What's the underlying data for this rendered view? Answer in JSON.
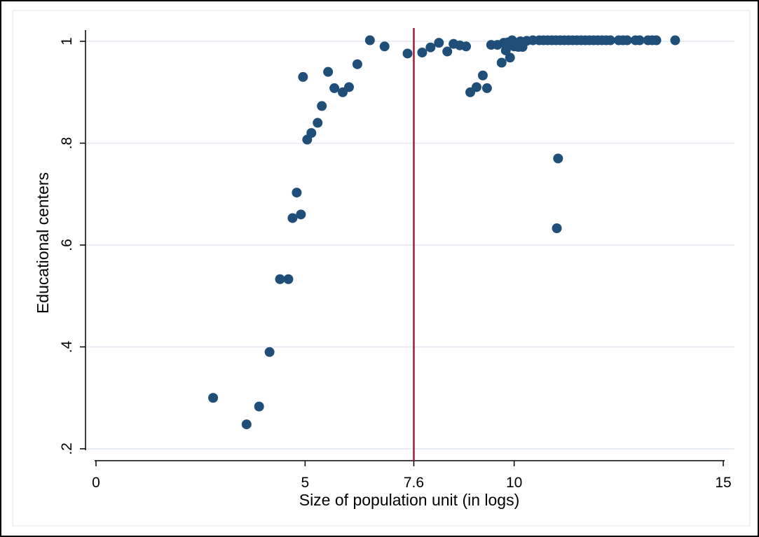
{
  "chart_data": {
    "type": "scatter",
    "xlabel": "Size of population unit (in logs)",
    "ylabel": "Educational centers",
    "xlim": [
      0,
      15
    ],
    "ylim": [
      0.2,
      1.0
    ],
    "x_ticks": [
      0,
      5,
      7.6,
      10,
      15
    ],
    "x_tick_labels": [
      "0",
      "5",
      "7.6",
      "10",
      "15"
    ],
    "y_ticks": [
      0.2,
      0.4,
      0.6,
      0.8,
      1.0
    ],
    "y_tick_labels": [
      ".2",
      ".4",
      ".6",
      ".8",
      "1"
    ],
    "grid": "horizontal",
    "reference_line": {
      "x": 7.6,
      "color": "#a6193c"
    },
    "marker_color": "#1f4e79",
    "points": [
      [
        2.8,
        0.3
      ],
      [
        3.6,
        0.248
      ],
      [
        3.9,
        0.283
      ],
      [
        4.15,
        0.39
      ],
      [
        4.4,
        0.533
      ],
      [
        4.6,
        0.533
      ],
      [
        4.7,
        0.653
      ],
      [
        4.8,
        0.703
      ],
      [
        4.9,
        0.66
      ],
      [
        4.95,
        0.93
      ],
      [
        5.05,
        0.807
      ],
      [
        5.15,
        0.82
      ],
      [
        5.3,
        0.84
      ],
      [
        5.4,
        0.873
      ],
      [
        5.55,
        0.94
      ],
      [
        5.7,
        0.908
      ],
      [
        5.9,
        0.9
      ],
      [
        6.05,
        0.91
      ],
      [
        6.25,
        0.955
      ],
      [
        6.55,
        1.002
      ],
      [
        6.9,
        0.99
      ],
      [
        7.45,
        0.976
      ],
      [
        7.8,
        0.978
      ],
      [
        8.0,
        0.988
      ],
      [
        8.2,
        0.997
      ],
      [
        8.4,
        0.98
      ],
      [
        8.55,
        0.995
      ],
      [
        8.7,
        0.992
      ],
      [
        8.85,
        0.99
      ],
      [
        8.95,
        0.9
      ],
      [
        9.1,
        0.91
      ],
      [
        9.25,
        0.933
      ],
      [
        9.35,
        0.908
      ],
      [
        9.45,
        0.993
      ],
      [
        9.6,
        0.993
      ],
      [
        9.7,
        0.958
      ],
      [
        9.75,
        0.997
      ],
      [
        9.8,
        0.982
      ],
      [
        9.85,
        0.998
      ],
      [
        9.9,
        0.968
      ],
      [
        9.95,
        1.002
      ],
      [
        10.0,
        0.99
      ],
      [
        10.05,
        0.997
      ],
      [
        10.1,
        0.989
      ],
      [
        10.15,
        1.0
      ],
      [
        10.2,
        0.989
      ],
      [
        10.3,
        1.001
      ],
      [
        10.45,
        1.002
      ],
      [
        10.6,
        1.002
      ],
      [
        10.7,
        1.002
      ],
      [
        10.8,
        1.002
      ],
      [
        10.9,
        1.002
      ],
      [
        11.0,
        1.002
      ],
      [
        11.1,
        1.002
      ],
      [
        11.2,
        1.002
      ],
      [
        11.3,
        1.002
      ],
      [
        11.4,
        1.002
      ],
      [
        11.5,
        1.002
      ],
      [
        11.6,
        1.002
      ],
      [
        11.7,
        1.002
      ],
      [
        11.8,
        1.002
      ],
      [
        11.9,
        1.002
      ],
      [
        12.0,
        1.002
      ],
      [
        12.1,
        1.002
      ],
      [
        12.2,
        1.002
      ],
      [
        12.3,
        1.002
      ],
      [
        12.5,
        1.002
      ],
      [
        12.6,
        1.002
      ],
      [
        12.7,
        1.002
      ],
      [
        12.9,
        1.002
      ],
      [
        13.0,
        1.002
      ],
      [
        13.2,
        1.002
      ],
      [
        13.3,
        1.002
      ],
      [
        13.4,
        1.002
      ],
      [
        13.85,
        1.002
      ],
      [
        11.05,
        0.77
      ],
      [
        11.02,
        0.633
      ]
    ]
  }
}
